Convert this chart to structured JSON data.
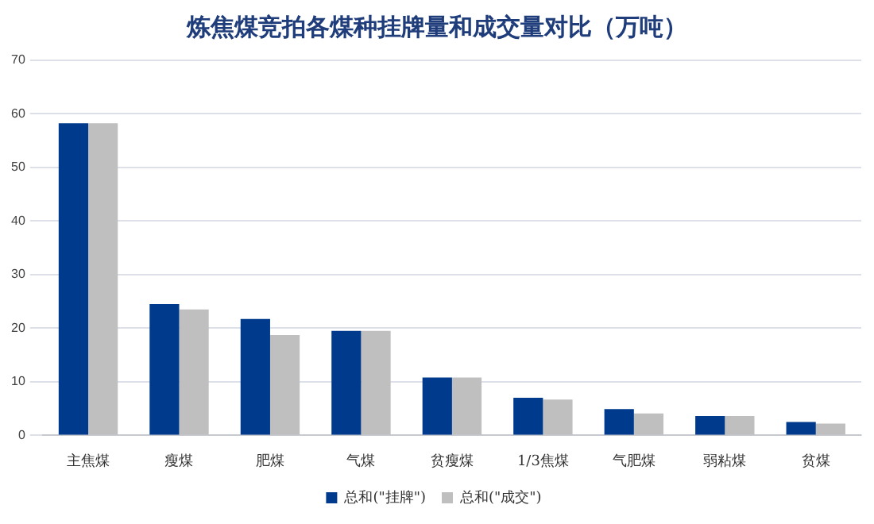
{
  "chart_data": {
    "type": "bar",
    "title": "炼焦煤竞拍各煤种挂牌量和成交量对比（万吨）",
    "categories": [
      "主焦煤",
      "瘦煤",
      "肥煤",
      "气煤",
      "贫瘦煤",
      "1/3焦煤",
      "气肥煤",
      "弱粘煤",
      "贫煤"
    ],
    "series": [
      {
        "name": "总和(\"挂牌\")",
        "color": "#003a8c",
        "values": [
          58.2,
          24.5,
          21.7,
          19.5,
          10.8,
          7.0,
          4.9,
          3.6,
          2.5
        ]
      },
      {
        "name": "总和(\"成交\")",
        "color": "#bfbfbf",
        "values": [
          58.2,
          23.5,
          18.7,
          19.5,
          10.8,
          6.7,
          4.1,
          3.6,
          2.2
        ]
      }
    ],
    "ylim": [
      0,
      70
    ],
    "yticks": [
      0,
      10,
      20,
      30,
      40,
      50,
      60,
      70
    ],
    "grid": "y",
    "legend": "bottom"
  }
}
